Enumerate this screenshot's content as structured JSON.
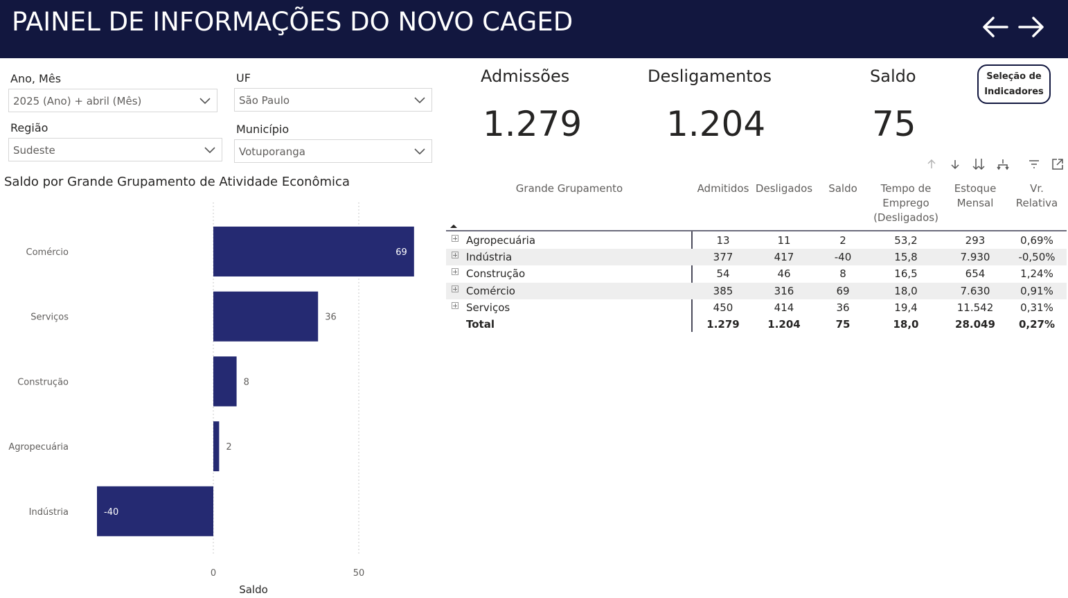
{
  "header": {
    "title": "PAINEL DE INFORMAÇÕES DO NOVO CAGED",
    "back_icon": "arrow-left-icon",
    "forward_icon": "arrow-right-icon",
    "background": "#12173f"
  },
  "filters": {
    "ano_mes": {
      "label": "Ano, Mês",
      "value": "2025 (Ano) + abril (Mês)"
    },
    "uf": {
      "label": "UF",
      "value": "São Paulo"
    },
    "regiao": {
      "label": "Região",
      "value": "Sudeste"
    },
    "municipio": {
      "label": "Município",
      "value": "Votuporanga"
    }
  },
  "kpis": {
    "admissoes": {
      "label": "Admissões",
      "value": "1.279"
    },
    "desligamentos": {
      "label": "Desligamentos",
      "value": "1.204"
    },
    "saldo": {
      "label": "Saldo",
      "value": "75"
    }
  },
  "selecao_button": {
    "line1": "Seleção de",
    "line2": "Indicadores"
  },
  "chart_data": {
    "type": "bar",
    "orientation": "horizontal",
    "title": "Saldo por Grande Grupamento de Atividade Econômica",
    "xlabel": "Saldo",
    "ylabel": "",
    "categories": [
      "Comércio",
      "Serviços",
      "Construção",
      "Agropecuária",
      "Indústria"
    ],
    "values": [
      69,
      36,
      8,
      2,
      -40
    ],
    "value_labels": [
      "69",
      "36",
      "8",
      "2",
      "-40"
    ],
    "x_ticks": [
      0,
      50
    ],
    "x_tick_labels": [
      "0",
      "50"
    ],
    "xlim": [
      -40,
      69
    ],
    "grid": true,
    "bar_color": "#252a72"
  },
  "table_icons": [
    "sort-up-icon",
    "sort-down-icon",
    "expand-all-icon",
    "drill-icon",
    "filter-icon",
    "focus-mode-icon"
  ],
  "table": {
    "headers": {
      "grupamento": "Grande Grupamento",
      "admitidos": "Admitidos",
      "desligados": "Desligados",
      "saldo": "Saldo",
      "tempo_l1": "Tempo de",
      "tempo_l2": "Emprego",
      "tempo_l3": "(Desligados)",
      "estoque_l1": "Estoque",
      "estoque_l2": "Mensal",
      "vr_l1": "Vr.",
      "vr_l2": "Relativa"
    },
    "rows": [
      {
        "name": "Agropecuária",
        "admitidos": "13",
        "desligados": "11",
        "saldo": "2",
        "tempo": "53,2",
        "estoque": "293",
        "vr": "0,69%"
      },
      {
        "name": "Indústria",
        "admitidos": "377",
        "desligados": "417",
        "saldo": "-40",
        "tempo": "15,8",
        "estoque": "7.930",
        "vr": "-0,50%"
      },
      {
        "name": "Construção",
        "admitidos": "54",
        "desligados": "46",
        "saldo": "8",
        "tempo": "16,5",
        "estoque": "654",
        "vr": "1,24%"
      },
      {
        "name": "Comércio",
        "admitidos": "385",
        "desligados": "316",
        "saldo": "69",
        "tempo": "18,0",
        "estoque": "7.630",
        "vr": "0,91%"
      },
      {
        "name": "Serviços",
        "admitidos": "450",
        "desligados": "414",
        "saldo": "36",
        "tempo": "19,4",
        "estoque": "11.542",
        "vr": "0,31%"
      }
    ],
    "total": {
      "name": "Total",
      "admitidos": "1.279",
      "desligados": "1.204",
      "saldo": "75",
      "tempo": "18,0",
      "estoque": "28.049",
      "vr": "0,27%"
    }
  }
}
